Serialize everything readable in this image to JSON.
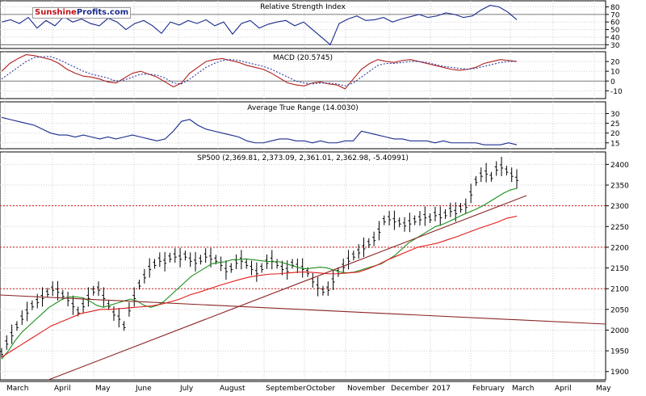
{
  "brand": {
    "name_part1": "Sunshine",
    "name_part2": "Profits.com"
  },
  "colors": {
    "price": "#000000",
    "rsi": "#1a2a8c",
    "macd": "#b01f1f",
    "signal": "#2b3b9c",
    "ma_fast": "#1d8f1d",
    "ma_slow": "#e21b1b",
    "support": "#d21b1b",
    "uptrend": "#8b2323",
    "downtrend": "#8b2323",
    "grid": "#cfcfcf"
  },
  "months": [
    "March",
    "April",
    "May",
    "June",
    "July",
    "August",
    "September",
    "October",
    "November",
    "December",
    "2017",
    "February",
    "March",
    "April",
    "May"
  ],
  "chart_data": [
    {
      "type": "line",
      "title": "Relative Strength Index",
      "yticks": [
        30,
        40,
        50,
        60,
        70,
        80
      ],
      "ylim": [
        25,
        88
      ],
      "reference_lines": [
        30,
        70
      ],
      "series": [
        {
          "values": [
            60,
            63,
            58,
            66,
            52,
            62,
            55,
            67,
            60,
            64,
            58,
            55,
            65,
            60,
            50,
            58,
            62,
            55,
            45,
            60,
            56,
            62,
            58,
            63,
            55,
            60,
            44,
            58,
            62,
            52,
            57,
            60,
            62,
            55,
            60,
            50,
            40,
            30,
            58,
            64,
            68,
            62,
            63,
            66,
            60,
            64,
            67,
            70,
            66,
            68,
            72,
            70,
            66,
            68,
            76,
            82,
            80,
            73,
            63
          ]
        }
      ]
    },
    {
      "type": "line",
      "title": "MACD (20.5745)",
      "yticks": [
        -10,
        0,
        10,
        20
      ],
      "ylim": [
        -18,
        30
      ],
      "reference_lines": [
        0
      ],
      "series": [
        {
          "values": [
            10,
            18,
            23,
            27,
            26,
            24,
            22,
            18,
            12,
            8,
            5,
            4,
            2,
            -1,
            -2,
            3,
            8,
            10,
            7,
            4,
            -1,
            -6,
            -2,
            8,
            14,
            20,
            22,
            23,
            21,
            19,
            16,
            14,
            12,
            8,
            3,
            -2,
            -4,
            -5,
            -2,
            -1,
            -3,
            -4,
            -8,
            2,
            12,
            18,
            22,
            20,
            19,
            21,
            22,
            20,
            18,
            16,
            14,
            12,
            11,
            12,
            14,
            18,
            20,
            22,
            21,
            20
          ]
        },
        {
          "values": [
            2,
            8,
            14,
            20,
            24,
            25,
            25,
            22,
            18,
            14,
            10,
            7,
            5,
            3,
            0,
            1,
            4,
            7,
            7,
            6,
            3,
            -2,
            -3,
            2,
            8,
            14,
            18,
            21,
            22,
            21,
            19,
            17,
            15,
            12,
            8,
            4,
            0,
            -2,
            -3,
            -2,
            -2,
            -3,
            -5,
            -2,
            4,
            10,
            16,
            18,
            18,
            19,
            20,
            20,
            19,
            17,
            15,
            14,
            13,
            12,
            13,
            15,
            17,
            19,
            20,
            20
          ]
        }
      ]
    },
    {
      "type": "line",
      "title": "Average True Range (14.0030)",
      "yticks": [
        15,
        20,
        25,
        30
      ],
      "ylim": [
        12,
        36
      ],
      "series": [
        {
          "values": [
            28,
            27,
            26,
            25,
            24,
            22,
            20,
            19,
            19,
            18,
            19,
            18,
            17,
            18,
            17,
            18,
            19,
            18,
            17,
            16,
            17,
            21,
            26,
            27,
            24,
            22,
            21,
            20,
            19,
            18,
            16,
            15,
            15,
            16,
            17,
            17,
            16,
            16,
            15,
            16,
            15,
            15,
            16,
            16,
            21,
            20,
            19,
            18,
            17,
            17,
            16,
            16,
            16,
            15,
            16,
            15,
            15,
            15,
            15,
            14,
            14,
            14,
            15,
            14
          ]
        }
      ]
    },
    {
      "type": "line",
      "title": "SP500 (2,369.81, 2,373.09, 2,361.01, 2,362.98, -5.40991)",
      "yticks": [
        1900,
        1950,
        2000,
        2050,
        2100,
        2150,
        2200,
        2250,
        2300,
        2350,
        2400
      ],
      "ylim": [
        1880,
        2430
      ],
      "support_levels": [
        2100,
        2200,
        2300
      ],
      "series": [
        {
          "values": [
            1945,
            1970,
            1990,
            2010,
            2030,
            2045,
            2060,
            2070,
            2080,
            2090,
            2100,
            2095,
            2085,
            2075,
            2060,
            2045,
            2060,
            2080,
            2095,
            2100,
            2080,
            2060,
            2040,
            2030,
            2010,
            2050,
            2080,
            2110,
            2130,
            2150,
            2160,
            2170,
            2165,
            2175,
            2180,
            2175,
            2180,
            2170,
            2165,
            2170,
            2180,
            2175,
            2170,
            2160,
            2145,
            2150,
            2165,
            2170,
            2160,
            2150,
            2140,
            2150,
            2165,
            2170,
            2160,
            2150,
            2145,
            2160,
            2155,
            2150,
            2140,
            2120,
            2105,
            2095,
            2100,
            2120,
            2140,
            2155,
            2170,
            2180,
            2190,
            2200,
            2210,
            2220,
            2240,
            2265,
            2270,
            2265,
            2260,
            2255,
            2260,
            2265,
            2270,
            2275,
            2270,
            2280,
            2275,
            2280,
            2290,
            2285,
            2295,
            2300,
            2330,
            2360,
            2375,
            2380,
            2370,
            2390,
            2395,
            2385,
            2375,
            2365
          ]
        },
        {
          "values": [
            1930,
            1950,
            1975,
            1995,
            2010,
            2025,
            2040,
            2055,
            2065,
            2075,
            2080,
            2080,
            2078,
            2070,
            2060,
            2055,
            2060,
            2065,
            2070,
            2075,
            2070,
            2060,
            2055,
            2060,
            2070,
            2085,
            2100,
            2115,
            2130,
            2140,
            2150,
            2160,
            2163,
            2165,
            2170,
            2170,
            2172,
            2170,
            2168,
            2166,
            2165,
            2165,
            2160,
            2155,
            2150,
            2148,
            2150,
            2152,
            2150,
            2145,
            2140,
            2138,
            2140,
            2145,
            2150,
            2155,
            2160,
            2170,
            2180,
            2195,
            2210,
            2220,
            2230,
            2240,
            2250,
            2255,
            2262,
            2270,
            2278,
            2285,
            2292,
            2300,
            2310,
            2320,
            2330,
            2338,
            2342
          ]
        },
        {
          "values": [
            1935,
            1950,
            1965,
            1980,
            1995,
            2010,
            2020,
            2030,
            2040,
            2045,
            2050,
            2050,
            2052,
            2054,
            2056,
            2058,
            2062,
            2068,
            2075,
            2085,
            2092,
            2100,
            2108,
            2115,
            2122,
            2128,
            2132,
            2135,
            2136,
            2138,
            2140,
            2140,
            2138,
            2136,
            2136,
            2138,
            2140,
            2148,
            2158,
            2170,
            2180,
            2190,
            2200,
            2205,
            2210,
            2218,
            2226,
            2235,
            2244,
            2252,
            2260,
            2270,
            2275
          ]
        }
      ]
    }
  ]
}
